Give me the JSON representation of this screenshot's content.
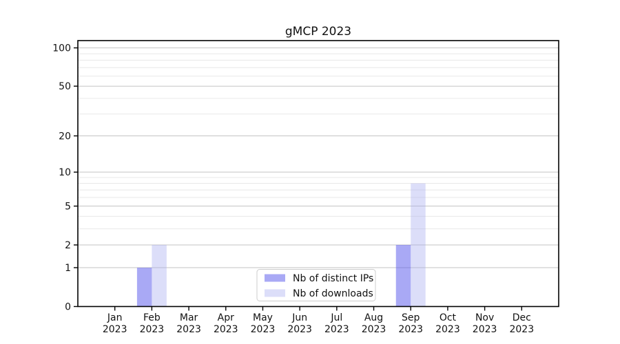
{
  "chart_data": {
    "type": "bar",
    "title": "gMCP 2023",
    "categories": [
      {
        "label": "Jan",
        "sub": "2023"
      },
      {
        "label": "Feb",
        "sub": "2023"
      },
      {
        "label": "Mar",
        "sub": "2023"
      },
      {
        "label": "Apr",
        "sub": "2023"
      },
      {
        "label": "May",
        "sub": "2023"
      },
      {
        "label": "Jun",
        "sub": "2023"
      },
      {
        "label": "Jul",
        "sub": "2023"
      },
      {
        "label": "Aug",
        "sub": "2023"
      },
      {
        "label": "Sep",
        "sub": "2023"
      },
      {
        "label": "Oct",
        "sub": "2023"
      },
      {
        "label": "Nov",
        "sub": "2023"
      },
      {
        "label": "Dec",
        "sub": "2023"
      }
    ],
    "series": [
      {
        "name": "Nb of distinct IPs",
        "fill": "#5a5aeb",
        "fill_opacity": 0.52,
        "apparent_color": "#a9a9f5",
        "values": [
          0,
          1,
          0,
          0,
          0,
          0,
          0,
          0,
          2,
          0,
          0,
          0
        ]
      },
      {
        "name": "Nb of downloads",
        "fill": "#a4a8f0",
        "fill_opacity": 0.38,
        "apparent_color": "#dbdcf9",
        "values": [
          0,
          2,
          0,
          0,
          0,
          0,
          0,
          0,
          8,
          0,
          0,
          0
        ]
      }
    ],
    "y_axis": {
      "scale": "log1p",
      "ticks": [
        0,
        1,
        2,
        5,
        10,
        20,
        50,
        100
      ],
      "minor_gridlines": [
        3,
        4,
        6,
        7,
        8,
        9,
        30,
        40,
        60,
        70,
        80,
        90
      ],
      "ylim": [
        0,
        114
      ]
    },
    "x_axis": {
      "tick_line2": "2023"
    },
    "legend": {
      "position": "lower-center",
      "entries": [
        "Nb of distinct IPs",
        "Nb of downloads"
      ]
    },
    "grid": {
      "major_color": "#c3c3c3",
      "minor_color": "#e8e8e8",
      "on": true
    },
    "colors": {
      "spine": "#000000",
      "text": "#111111",
      "background": "#ffffff",
      "legend_border": "#cccccc"
    }
  }
}
